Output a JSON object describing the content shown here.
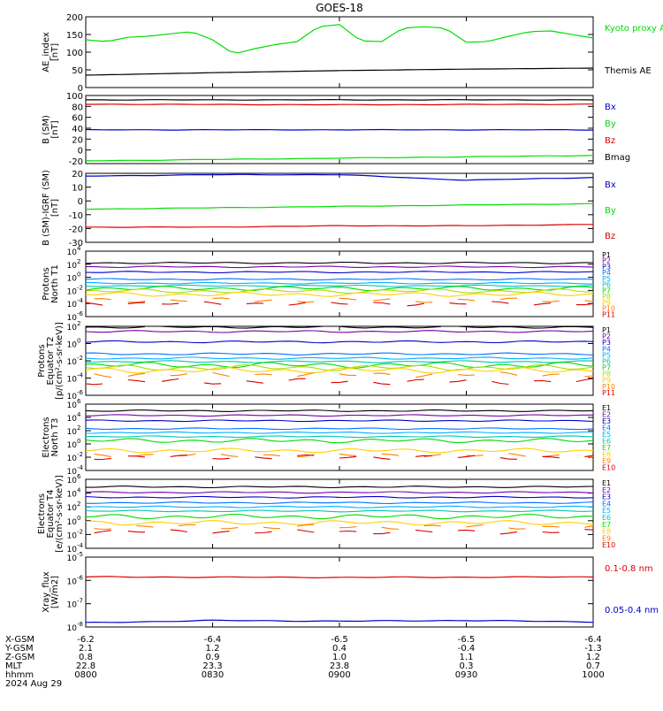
{
  "title": "GOES-18",
  "time_axis": {
    "ticks": [
      "0800",
      "0830",
      "0900",
      "0930",
      "1000"
    ],
    "rows": [
      {
        "label": "X-GSM",
        "values": [
          "-6.2",
          "-6.4",
          "-6.5",
          "-6.5",
          "-6.4"
        ]
      },
      {
        "label": "Y-GSM",
        "values": [
          "2.1",
          "1.2",
          "0.4",
          "-0.4",
          "-1.3"
        ]
      },
      {
        "label": "Z-GSM",
        "values": [
          "0.8",
          "0.9",
          "1.0",
          "1.1",
          "1.2"
        ]
      },
      {
        "label": "MLT",
        "values": [
          "22.8",
          "23.3",
          "23.8",
          "0.3",
          "0.7"
        ]
      },
      {
        "label": "hhmm",
        "values": [
          "0800",
          "0830",
          "0900",
          "0930",
          "1000"
        ]
      }
    ],
    "date": "2024 Aug 29"
  },
  "chart_data": [
    {
      "type": "line",
      "ylabel": [
        "AE_index",
        "[nT]"
      ],
      "ylim": [
        0,
        200
      ],
      "yticks": [
        "0",
        "50",
        "100",
        "150",
        "200"
      ],
      "x_range": [
        "0800",
        "1000"
      ],
      "series": [
        {
          "name": "Kyoto proxy AE",
          "color": "#00dd00",
          "x": [
            "0800",
            "0805",
            "0810",
            "0815",
            "0820",
            "0825",
            "0830",
            "0835",
            "0840",
            "0845",
            "0850",
            "0855",
            "0900",
            "0905",
            "0910",
            "0915",
            "0920",
            "0925",
            "0930",
            "0935",
            "0940",
            "0945",
            "0950",
            "0955",
            "1000"
          ],
          "values": [
            135,
            130,
            142,
            145,
            152,
            158,
            135,
            95,
            110,
            122,
            130,
            172,
            178,
            132,
            130,
            168,
            172,
            168,
            128,
            130,
            145,
            158,
            160,
            150,
            140
          ]
        },
        {
          "name": "Themis AE",
          "color": "#000000",
          "x": [
            "0800",
            "0830",
            "0900",
            "0930",
            "1000"
          ],
          "values": [
            35,
            42,
            48,
            52,
            55
          ]
        }
      ]
    },
    {
      "type": "line",
      "ylabel": [
        "B (SM)",
        "[nT]"
      ],
      "ylim": [
        -25,
        100
      ],
      "yticks": [
        "-20",
        "0",
        "20",
        "40",
        "60",
        "80",
        "100"
      ],
      "series": [
        {
          "name": "Bx",
          "color": "#0000cc",
          "x": [
            "0800",
            "0900",
            "1000"
          ],
          "values": [
            37,
            37,
            37
          ]
        },
        {
          "name": "By",
          "color": "#00dd00",
          "x": [
            "0800",
            "0900",
            "1000"
          ],
          "values": [
            -20,
            -15,
            -10
          ]
        },
        {
          "name": "Bz",
          "color": "#dd0000",
          "x": [
            "0800",
            "0900",
            "1000"
          ],
          "values": [
            84,
            83,
            84
          ]
        },
        {
          "name": "Bmag",
          "color": "#000000",
          "x": [
            "0800",
            "0900",
            "1000"
          ],
          "values": [
            92,
            92,
            92
          ]
        }
      ]
    },
    {
      "type": "line",
      "ylabel": [
        "B (SM)-IGRF (SM)",
        "[nT]"
      ],
      "ylim": [
        -30,
        20
      ],
      "yticks": [
        "-30",
        "-20",
        "-10",
        "0",
        "10",
        "20"
      ],
      "series": [
        {
          "name": "Bx",
          "color": "#0000cc",
          "x": [
            "0800",
            "0830",
            "0900",
            "0930",
            "1000"
          ],
          "values": [
            18,
            19,
            19,
            15,
            17
          ]
        },
        {
          "name": "By",
          "color": "#00dd00",
          "x": [
            "0800",
            "0830",
            "0900",
            "0930",
            "1000"
          ],
          "values": [
            -6,
            -5,
            -4,
            -3,
            -2
          ]
        },
        {
          "name": "Bz",
          "color": "#dd0000",
          "x": [
            "0800",
            "0830",
            "0900",
            "0930",
            "1000"
          ],
          "values": [
            -19,
            -19,
            -18,
            -18,
            -17
          ]
        }
      ]
    },
    {
      "type": "line",
      "ylabel": [
        "Protons",
        "North T1"
      ],
      "ylim_log": [
        -6,
        4
      ],
      "yticks": [
        "10^-6",
        "10^-4",
        "10^-2",
        "10^0",
        "10^2",
        "10^4"
      ],
      "series_labels": [
        "P1",
        "P2",
        "P3",
        "P4",
        "P5",
        "P6",
        "P7",
        "P8",
        "P9",
        "P10",
        "P11"
      ],
      "series_colors": [
        "#000000",
        "#7a00a8",
        "#0000cc",
        "#0070ff",
        "#00b0ff",
        "#00c8b4",
        "#00dd00",
        "#a8e000",
        "#ffd000",
        "#ff8000",
        "#dd0000"
      ],
      "log_values": [
        2.2,
        1.6,
        0.8,
        -0.3,
        -0.9,
        -1.3,
        -1.7,
        -2.1,
        -2.6,
        -3.5,
        -4.0
      ]
    },
    {
      "type": "line",
      "ylabel": [
        "Protons",
        "Equator T2",
        "[p/(cm²-s-sr-keV)]"
      ],
      "ylim_log": [
        -6,
        2
      ],
      "yticks": [
        "10^-6",
        "10^-4",
        "10^-2",
        "10^0",
        "10^2"
      ],
      "series_labels": [
        "P1",
        "P2",
        "P3",
        "P4",
        "P5",
        "P6",
        "P7",
        "P8",
        "P9",
        "P10",
        "P11"
      ],
      "series_colors": [
        "#000000",
        "#7a00a8",
        "#0000cc",
        "#0070ff",
        "#00b0ff",
        "#00c8b4",
        "#00dd00",
        "#a8e000",
        "#ffd000",
        "#ff8000",
        "#dd0000"
      ],
      "log_values": [
        1.9,
        1.4,
        0.2,
        -1.2,
        -1.7,
        -2.1,
        -2.5,
        -2.8,
        -3.1,
        -3.6,
        -4.4
      ]
    },
    {
      "type": "line",
      "ylabel": [
        "Electrons",
        "North T3"
      ],
      "ylim_log": [
        -4,
        6
      ],
      "yticks": [
        "10^-4",
        "10^-2",
        "10^0",
        "10^2",
        "10^4",
        "10^6"
      ],
      "series_labels": [
        "E1",
        "E2",
        "E3",
        "E4",
        "E5",
        "E6",
        "E7",
        "E8",
        "E9",
        "E10"
      ],
      "series_colors": [
        "#000000",
        "#7a00a8",
        "#0000cc",
        "#0070ff",
        "#00b0ff",
        "#00c8b4",
        "#00dd00",
        "#ffd000",
        "#ff8000",
        "#dd0000"
      ],
      "log_values": [
        5.0,
        4.3,
        3.5,
        2.3,
        1.7,
        1.1,
        0.5,
        -1.0,
        -1.7,
        -2.0
      ]
    },
    {
      "type": "line",
      "ylabel": [
        "Electrons",
        "Equator T4",
        "[e/(cm²-s-sr-keV)]"
      ],
      "ylim_log": [
        -4,
        6
      ],
      "yticks": [
        "10^-4",
        "10^-2",
        "10^0",
        "10^2",
        "10^4",
        "10^6"
      ],
      "series_labels": [
        "E1",
        "E2",
        "E3",
        "E4",
        "E5",
        "E6",
        "E7",
        "E8",
        "E9",
        "E10"
      ],
      "series_colors": [
        "#000000",
        "#7a00a8",
        "#0000cc",
        "#0070ff",
        "#00b0ff",
        "#00c8b4",
        "#00dd00",
        "#ffd000",
        "#ff8000",
        "#dd0000"
      ],
      "log_values": [
        4.9,
        4.1,
        3.4,
        2.6,
        2.0,
        1.4,
        0.6,
        -0.3,
        -0.9,
        -1.6
      ]
    },
    {
      "type": "line",
      "ylabel": [
        "Xray_flux",
        "[W/m2]"
      ],
      "ylim_log": [
        -8,
        -5
      ],
      "yticks": [
        "10^-8",
        "10^-7",
        "10^-6",
        "10^-5"
      ],
      "series": [
        {
          "name": "0.1-0.8 nm",
          "color": "#dd0000",
          "x": [
            "0800",
            "0900",
            "1000"
          ],
          "log_values": [
            -5.85,
            -5.87,
            -5.85
          ]
        },
        {
          "name": "0.05-0.4 nm",
          "color": "#0000cc",
          "x": [
            "0800",
            "0830",
            "0900",
            "0930",
            "1000"
          ],
          "log_values": [
            -7.82,
            -7.72,
            -7.75,
            -7.72,
            -7.78
          ]
        }
      ]
    }
  ]
}
